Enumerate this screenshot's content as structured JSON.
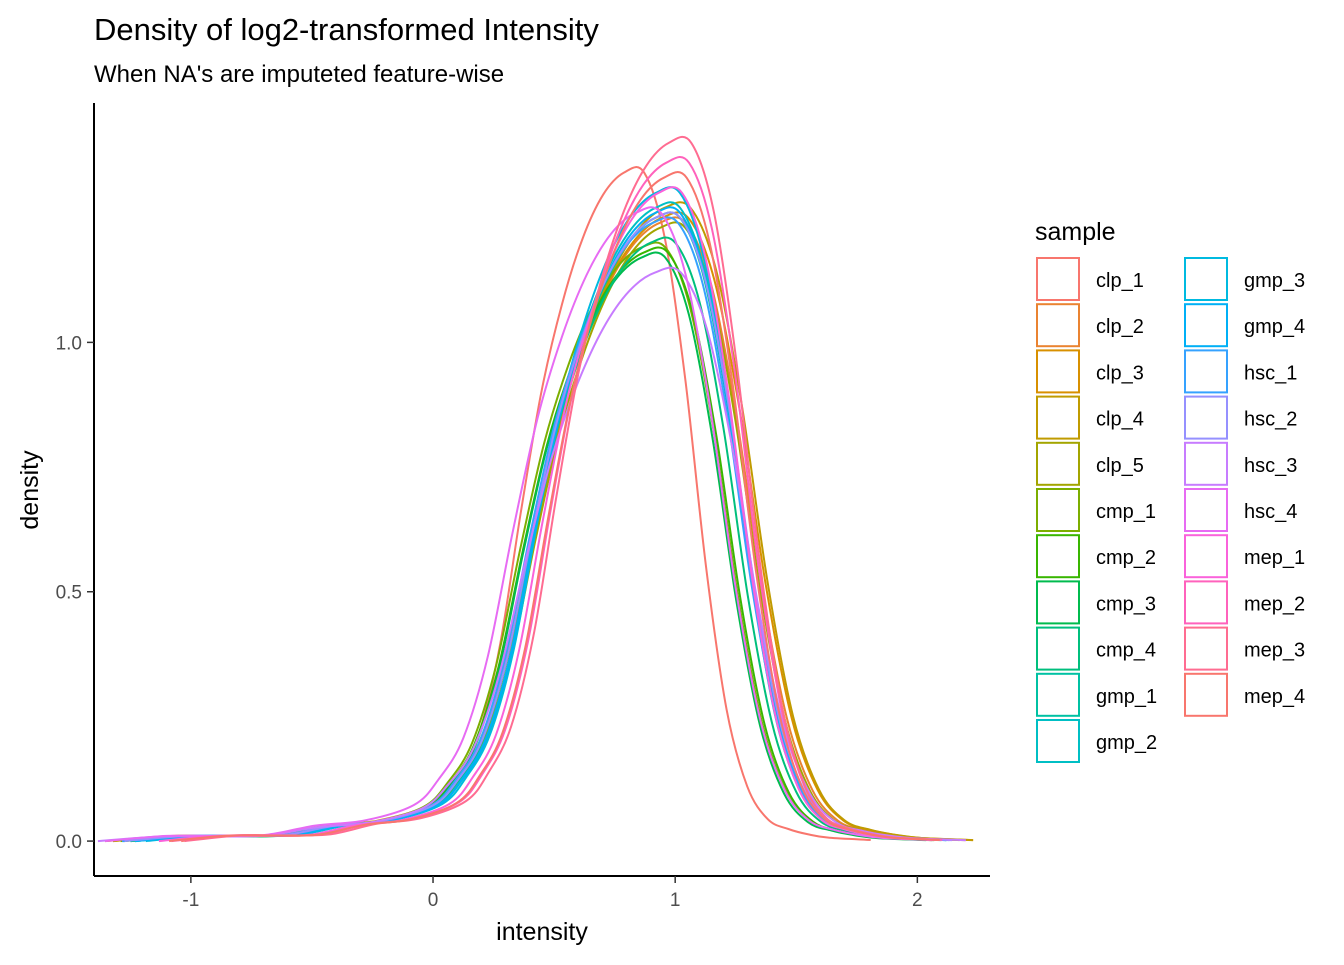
{
  "chart_data": {
    "type": "line",
    "title": "Density of log2-transformed Intensity",
    "subtitle": "When NA's are imputeted feature-wise",
    "xlabel": "intensity",
    "ylabel": "density",
    "xlim": [
      -1.4,
      2.3
    ],
    "ylim": [
      -0.07,
      1.48
    ],
    "x_ticks": [
      -1,
      0,
      1,
      2
    ],
    "x_tick_labels": [
      "-1",
      "0",
      "1",
      "2"
    ],
    "y_ticks": [
      0.0,
      0.5,
      1.0
    ],
    "y_tick_labels": [
      "0.0",
      "0.5",
      "1.0"
    ],
    "grid": false,
    "legend": {
      "title": "sample",
      "position": "right",
      "columns": 2
    },
    "x_base": [
      -1.25,
      -1.0,
      -0.8,
      -0.6,
      -0.4,
      -0.2,
      0.0,
      0.1,
      0.2,
      0.3,
      0.4,
      0.5,
      0.6,
      0.7,
      0.8,
      0.9,
      1.0,
      1.1,
      1.2,
      1.3,
      1.4,
      1.5,
      1.6,
      1.7,
      1.8,
      1.9,
      2.1
    ],
    "series": [
      {
        "name": "clp_1",
        "color": "#F8766D",
        "peak_x": 0.68,
        "peak_y": 1.34,
        "shift": -0.12,
        "width": 0.85
      },
      {
        "name": "clp_2",
        "color": "#EA8331",
        "peak_x": 0.95,
        "peak_y": 1.24,
        "shift": 0.04,
        "width": 1.05
      },
      {
        "name": "clp_3",
        "color": "#D89000",
        "peak_x": 0.97,
        "peak_y": 1.25,
        "shift": 0.05,
        "width": 1.07
      },
      {
        "name": "clp_4",
        "color": "#C09B00",
        "peak_x": 0.98,
        "peak_y": 1.27,
        "shift": 0.06,
        "width": 1.06
      },
      {
        "name": "clp_5",
        "color": "#A3A500",
        "peak_x": 0.95,
        "peak_y": 1.23,
        "shift": 0.04,
        "width": 1.03
      },
      {
        "name": "cmp_1",
        "color": "#7CAE00",
        "peak_x": 0.75,
        "peak_y": 1.19,
        "shift": -0.04,
        "width": 1.0
      },
      {
        "name": "cmp_2",
        "color": "#39B600",
        "peak_x": 0.78,
        "peak_y": 1.18,
        "shift": -0.03,
        "width": 1.0
      },
      {
        "name": "cmp_3",
        "color": "#00BB4E",
        "peak_x": 0.74,
        "peak_y": 1.17,
        "shift": -0.04,
        "width": 0.98
      },
      {
        "name": "cmp_4",
        "color": "#00BF7D",
        "peak_x": 0.85,
        "peak_y": 1.2,
        "shift": 0.0,
        "width": 1.0
      },
      {
        "name": "gmp_1",
        "color": "#00C1A3",
        "peak_x": 0.9,
        "peak_y": 1.25,
        "shift": 0.02,
        "width": 1.0
      },
      {
        "name": "gmp_2",
        "color": "#00BFC4",
        "peak_x": 0.88,
        "peak_y": 1.27,
        "shift": 0.02,
        "width": 1.0
      },
      {
        "name": "gmp_3",
        "color": "#00BAE0",
        "peak_x": 0.88,
        "peak_y": 1.3,
        "shift": 0.02,
        "width": 0.98
      },
      {
        "name": "gmp_4",
        "color": "#00B0F6",
        "peak_x": 0.9,
        "peak_y": 1.26,
        "shift": 0.02,
        "width": 1.0
      },
      {
        "name": "hsc_1",
        "color": "#35A2FF",
        "peak_x": 0.87,
        "peak_y": 1.24,
        "shift": 0.01,
        "width": 1.02
      },
      {
        "name": "hsc_2",
        "color": "#9590FF",
        "peak_x": 0.9,
        "peak_y": 1.25,
        "shift": 0.02,
        "width": 1.02
      },
      {
        "name": "hsc_3",
        "color": "#C77CFF",
        "peak_x": 0.92,
        "peak_y": 1.14,
        "shift": 0.02,
        "width": 1.07
      },
      {
        "name": "hsc_4",
        "color": "#E76BF3",
        "peak_x": 0.72,
        "peak_y": 1.26,
        "shift": -0.06,
        "width": 1.02
      },
      {
        "name": "mep_1",
        "color": "#FA62DB",
        "peak_x": 0.92,
        "peak_y": 1.3,
        "shift": 0.03,
        "width": 0.96
      },
      {
        "name": "mep_2",
        "color": "#FF62BC",
        "peak_x": 0.98,
        "peak_y": 1.36,
        "shift": 0.06,
        "width": 0.95
      },
      {
        "name": "mep_3",
        "color": "#FF6C91",
        "peak_x": 0.99,
        "peak_y": 1.4,
        "shift": 0.07,
        "width": 0.93
      },
      {
        "name": "mep_4",
        "color": "#F8766D",
        "peak_x": 0.96,
        "peak_y": 1.33,
        "shift": 0.05,
        "width": 0.95
      }
    ],
    "base_shape": [
      0.0,
      0.01,
      0.01,
      0.012,
      0.03,
      0.04,
      0.07,
      0.12,
      0.2,
      0.36,
      0.6,
      0.82,
      0.98,
      1.1,
      1.18,
      1.22,
      1.22,
      1.1,
      0.84,
      0.5,
      0.24,
      0.1,
      0.04,
      0.022,
      0.012,
      0.006,
      0.002
    ]
  }
}
